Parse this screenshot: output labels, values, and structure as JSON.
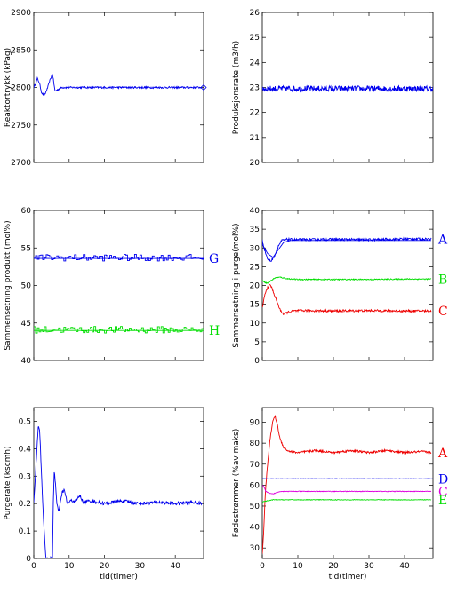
{
  "chart_data": [
    {
      "id": "p1",
      "type": "line",
      "ylabel": "Reaktortrykk (kPag)",
      "xlim": [
        0,
        48
      ],
      "ylim": [
        2700,
        2900
      ],
      "yticks": [
        2700,
        2750,
        2800,
        2850,
        2900
      ],
      "xticks": [],
      "grid": false,
      "series": [
        {
          "color": "#0000ee",
          "noise": 1.2,
          "x": [
            0,
            0.6,
            1.0,
            1.6,
            2.2,
            3.0,
            3.8,
            4.6,
            5.3,
            6.0,
            6.8,
            7.8,
            9,
            12,
            20,
            30,
            40,
            47.5
          ],
          "y": [
            2800,
            2806,
            2812,
            2806,
            2793,
            2789,
            2798,
            2810,
            2818,
            2795,
            2797,
            2800,
            2800,
            2800,
            2800,
            2800,
            2800,
            2800
          ]
        }
      ],
      "labels": []
    },
    {
      "id": "p2",
      "type": "line",
      "ylabel": "Produksjonsrate (m3/h)",
      "xlim": [
        0,
        48
      ],
      "ylim": [
        20,
        26
      ],
      "yticks": [
        20,
        21,
        22,
        23,
        24,
        25,
        26
      ],
      "xticks": [],
      "grid": false,
      "series": [
        {
          "color": "#0000ee",
          "noise": 0.12,
          "x": [
            0,
            48
          ],
          "y": [
            22.95,
            22.95
          ]
        }
      ],
      "labels": []
    },
    {
      "id": "p3",
      "type": "line",
      "ylabel": "Sammensetning produkt (mol%)",
      "xlim": [
        0,
        48
      ],
      "ylim": [
        40,
        60
      ],
      "yticks": [
        40,
        45,
        50,
        55,
        60
      ],
      "xticks": [],
      "grid": false,
      "series": [
        {
          "color": "#0000ee",
          "noise": 0.45,
          "step": 0.5,
          "x": [
            0,
            48
          ],
          "y": [
            53.7,
            53.7
          ]
        },
        {
          "color": "#0000ee",
          "noise": 0,
          "x": [
            0,
            48
          ],
          "y": [
            53.6,
            53.6
          ]
        },
        {
          "color": "#00dd00",
          "noise": 0.45,
          "step": 0.5,
          "x": [
            0,
            48
          ],
          "y": [
            44.1,
            44.1
          ]
        },
        {
          "color": "#00dd00",
          "noise": 0,
          "x": [
            0,
            48
          ],
          "y": [
            44.0,
            44.0
          ]
        }
      ],
      "labels": [
        {
          "text": "G",
          "color": "#0000ee",
          "y": 53.6
        },
        {
          "text": "H",
          "color": "#00dd00",
          "y": 44.0
        }
      ]
    },
    {
      "id": "p4",
      "type": "line",
      "ylabel": "Sammensetning i purge(mol%)",
      "xlim": [
        0,
        48
      ],
      "ylim": [
        0,
        40
      ],
      "yticks": [
        0,
        5,
        10,
        15,
        20,
        25,
        30,
        35,
        40
      ],
      "xticks": [],
      "grid": false,
      "series": [
        {
          "color": "#0000ee",
          "noise": 0.3,
          "x": [
            0,
            0.5,
            1.5,
            2.5,
            3.5,
            4.5,
            5.5,
            7,
            10,
            20,
            30,
            40,
            47.5
          ],
          "y": [
            32,
            30,
            27,
            26.5,
            28,
            30.5,
            32,
            32.3,
            32.2,
            32.3,
            32.2,
            32.4,
            32.4
          ]
        },
        {
          "color": "#0000ee",
          "noise": 0,
          "x": [
            0,
            1.5,
            3,
            4.5,
            6,
            8,
            47.5
          ],
          "y": [
            31,
            28.5,
            27.5,
            29.5,
            31.5,
            32,
            32
          ]
        },
        {
          "color": "#00dd00",
          "noise": 0.15,
          "x": [
            0,
            0.8,
            1.5,
            2.5,
            3.5,
            5,
            7,
            10,
            20,
            30,
            40,
            47.5
          ],
          "y": [
            21.5,
            20.8,
            20.6,
            21.3,
            22.0,
            22.2,
            21.8,
            21.6,
            21.6,
            21.6,
            21.7,
            21.7
          ]
        },
        {
          "color": "#ee0000",
          "noise": 0.3,
          "x": [
            0,
            0.7,
            1.5,
            2.3,
            3.0,
            4.0,
            5.0,
            6.0,
            7.0,
            9,
            12,
            20,
            30,
            40,
            47.5
          ],
          "y": [
            14,
            17.5,
            19.5,
            20.2,
            18.5,
            16,
            13.5,
            12.3,
            12.8,
            13.2,
            13.3,
            13.2,
            13.3,
            13.2,
            13.2
          ]
        }
      ],
      "labels": [
        {
          "text": "A",
          "color": "#0000ee",
          "y": 32.3
        },
        {
          "text": "B",
          "color": "#00dd00",
          "y": 21.7
        },
        {
          "text": "C",
          "color": "#ee0000",
          "y": 13.2
        }
      ]
    },
    {
      "id": "p5",
      "type": "line",
      "ylabel": "Purgerate (kscmh)",
      "xlabel": "tid(timer)",
      "xlim": [
        0,
        48
      ],
      "ylim": [
        0,
        0.55
      ],
      "yticks": [
        0,
        0.1,
        0.2,
        0.3,
        0.4,
        0.5
      ],
      "xticks": [
        0,
        10,
        20,
        30,
        40
      ],
      "grid": false,
      "series": [
        {
          "color": "#0000ee",
          "noise": 0.006,
          "x": [
            0,
            0.8,
            1.3,
            1.7,
            2.2,
            2.8,
            3.4,
            5.3,
            5.5,
            5.8,
            6.1,
            6.5,
            7.0,
            7.5,
            8.0,
            8.6,
            9.5,
            10.5,
            12,
            13,
            14,
            16,
            20,
            25,
            30,
            35,
            40,
            45,
            47.5
          ],
          "y": [
            0.2,
            0.38,
            0.49,
            0.46,
            0.3,
            0.13,
            0.0,
            0.0,
            0.2,
            0.32,
            0.28,
            0.2,
            0.17,
            0.2,
            0.24,
            0.25,
            0.2,
            0.21,
            0.21,
            0.23,
            0.205,
            0.21,
            0.2,
            0.21,
            0.2,
            0.205,
            0.2,
            0.205,
            0.2
          ]
        }
      ],
      "labels": []
    },
    {
      "id": "p6",
      "type": "line",
      "ylabel": "Fødestrømmer (%av maks)",
      "xlabel": "tid(timer)",
      "xlim": [
        0,
        48
      ],
      "ylim": [
        25,
        97
      ],
      "yticks": [
        30,
        40,
        50,
        60,
        70,
        80,
        90
      ],
      "xticks": [
        0,
        10,
        20,
        30,
        40
      ],
      "grid": false,
      "series": [
        {
          "color": "#ee0000",
          "noise": 0.5,
          "x": [
            0,
            0.4,
            0.8,
            1.2,
            1.6,
            2.2,
            3.0,
            3.6,
            4.2,
            5.0,
            6.0,
            7.0,
            8.0,
            10,
            15,
            20,
            25,
            30,
            35,
            40,
            45,
            47.5
          ],
          "y": [
            27,
            38,
            55,
            64,
            72,
            82,
            91,
            93,
            89,
            82,
            78,
            76.5,
            76,
            75.5,
            76.5,
            75.5,
            76.5,
            75.5,
            76.5,
            75.5,
            76,
            75.5
          ]
        },
        {
          "color": "#0000ee",
          "noise": 0.1,
          "x": [
            0,
            48
          ],
          "y": [
            63,
            63
          ]
        },
        {
          "color": "#dd00dd",
          "noise": 0.15,
          "x": [
            0,
            0.5,
            1,
            2,
            3,
            5,
            8,
            47.5
          ],
          "y": [
            60,
            59,
            57,
            56,
            55.8,
            57,
            57,
            57
          ]
        },
        {
          "color": "#00dd00",
          "noise": 0.15,
          "x": [
            0,
            1.5,
            3,
            5,
            47.5
          ],
          "y": [
            52,
            52.5,
            53,
            53,
            53
          ]
        }
      ],
      "labels": [
        {
          "text": "A",
          "color": "#ee0000",
          "y": 75.5
        },
        {
          "text": "D",
          "color": "#0000ee",
          "y": 63
        },
        {
          "text": "C",
          "color": "#dd00dd",
          "y": 57
        },
        {
          "text": "E",
          "color": "#00dd00",
          "y": 53
        }
      ]
    }
  ]
}
